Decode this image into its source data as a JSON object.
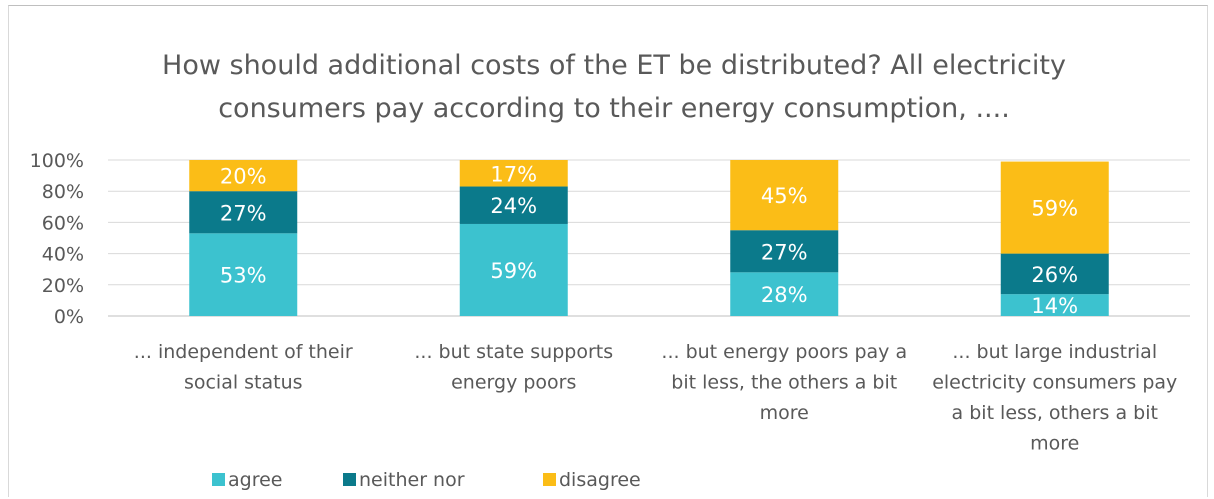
{
  "chart_data": {
    "type": "bar",
    "stacked": true,
    "title_lines": [
      "How should additional costs of the ET be distributed? All electricity",
      "consumers pay according to their energy consumption, ...."
    ],
    "categories": [
      [
        "... independent of their",
        "social status"
      ],
      [
        "... but state supports",
        "energy poors"
      ],
      [
        "... but energy poors pay a",
        "bit less, the others a bit",
        "more"
      ],
      [
        "... but large industrial",
        "electricity consumers pay",
        "a bit less, others a bit",
        "more"
      ]
    ],
    "series": [
      {
        "name": "agree",
        "values": [
          53,
          59,
          28,
          14
        ],
        "color": "#3cc2cf"
      },
      {
        "name": "neither nor",
        "values": [
          27,
          24,
          27,
          26
        ],
        "color": "#0b7a8b"
      },
      {
        "name": "disagree",
        "values": [
          20,
          17,
          45,
          59
        ],
        "color": "#fbbd17"
      }
    ],
    "ylim": [
      0,
      100
    ],
    "yticks": [
      "0%",
      "20%",
      "40%",
      "60%",
      "80%",
      "100%"
    ],
    "value_suffix": "%",
    "grid": true,
    "legend_position": "bottom-left"
  }
}
